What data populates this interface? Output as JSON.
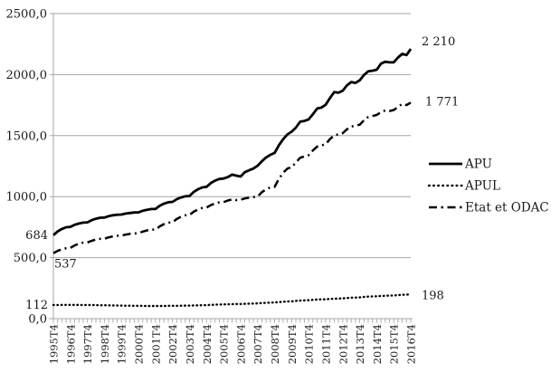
{
  "chart_data": {
    "type": "line",
    "title": "",
    "xlabel": "",
    "ylabel": "",
    "ylim": [
      0,
      2500
    ],
    "grid": "horizontal",
    "legend_position": "right",
    "colors": {
      "line": "#000000",
      "grid": "#a6a6a6",
      "axis": "#a6a6a6",
      "text": "#1a1a1a"
    },
    "y_ticks": [
      {
        "value": 0,
        "label": "0,0"
      },
      {
        "value": 500,
        "label": "500,0"
      },
      {
        "value": 1000,
        "label": "1000,0"
      },
      {
        "value": 1500,
        "label": "1500,0"
      },
      {
        "value": 2000,
        "label": "2000,0"
      },
      {
        "value": 2500,
        "label": "2500,0"
      }
    ],
    "x_tick_labels": [
      "1995T4",
      "1996T4",
      "1997T4",
      "1998T4",
      "1999T4",
      "2000T4",
      "2001T4",
      "2002T4",
      "2003T4",
      "2004T4",
      "2005T4",
      "2006T4",
      "2007T4",
      "2008T4",
      "2009T4",
      "2010T4",
      "2011T4",
      "2012T4",
      "2013T4",
      "2014T4",
      "2015T4",
      "2016T4"
    ],
    "x_minor_ticks_per_year": 4,
    "series": [
      {
        "name": "APU",
        "style": "solid",
        "start_label": "684",
        "end_label": "2 210",
        "values": [
          684,
          715,
          735,
          749,
          752,
          769,
          780,
          787,
          789,
          807,
          819,
          827,
          829,
          840,
          847,
          852,
          853,
          861,
          866,
          870,
          871,
          884,
          892,
          898,
          899,
          925,
          943,
          954,
          957,
          979,
          993,
          1003,
          1005,
          1039,
          1061,
          1076,
          1080,
          1111,
          1131,
          1145,
          1148,
          1160,
          1180,
          1172,
          1165,
          1200,
          1216,
          1230,
          1253,
          1289,
          1321,
          1343,
          1358,
          1420,
          1470,
          1510,
          1532,
          1565,
          1614,
          1620,
          1633,
          1675,
          1722,
          1730,
          1754,
          1808,
          1857,
          1852,
          1868,
          1912,
          1939,
          1932,
          1953,
          1997,
          2027,
          2032,
          2040,
          2090,
          2105,
          2100,
          2101,
          2140,
          2170,
          2160,
          2210
        ]
      },
      {
        "name": "APUL",
        "style": "dotted",
        "start_label": "112",
        "end_label": "198",
        "values": [
          112,
          112,
          113,
          113,
          113,
          113,
          112,
          112,
          112,
          111,
          111,
          110,
          110,
          109,
          108,
          108,
          107,
          106,
          106,
          105,
          105,
          105,
          104,
          104,
          104,
          104,
          104,
          105,
          105,
          105,
          106,
          107,
          107,
          108,
          109,
          110,
          111,
          113,
          115,
          116,
          117,
          118,
          119,
          120,
          120,
          122,
          123,
          124,
          125,
          128,
          130,
          132,
          133,
          136,
          139,
          141,
          142,
          146,
          148,
          150,
          151,
          154,
          157,
          158,
          159,
          162,
          164,
          165,
          166,
          169,
          172,
          173,
          174,
          178,
          181,
          182,
          183,
          186,
          188,
          189,
          190,
          193,
          196,
          197,
          198
        ]
      },
      {
        "name": "Etat et ODAC",
        "style": "dashdot",
        "start_label": "537",
        "end_label": "1 771",
        "values": [
          537,
          556,
          569,
          577,
          580,
          600,
          614,
          623,
          625,
          638,
          648,
          654,
          655,
          666,
          674,
          679,
          680,
          689,
          695,
          699,
          700,
          714,
          723,
          729,
          730,
          757,
          775,
          787,
          790,
          817,
          835,
          847,
          850,
          877,
          895,
          907,
          910,
          930,
          944,
          953,
          955,
          968,
          978,
          972,
          975,
          985,
          992,
          996,
          1000,
          1036,
          1060,
          1076,
          1080,
          1145,
          1195,
          1230,
          1240,
          1280,
          1318,
          1330,
          1340,
          1378,
          1410,
          1420,
          1430,
          1472,
          1502,
          1510,
          1520,
          1552,
          1575,
          1580,
          1590,
          1626,
          1652,
          1660,
          1670,
          1692,
          1706,
          1702,
          1710,
          1735,
          1760,
          1750,
          1771
        ]
      }
    ],
    "legend": [
      "APU",
      "APUL",
      "Etat et ODAC"
    ]
  }
}
